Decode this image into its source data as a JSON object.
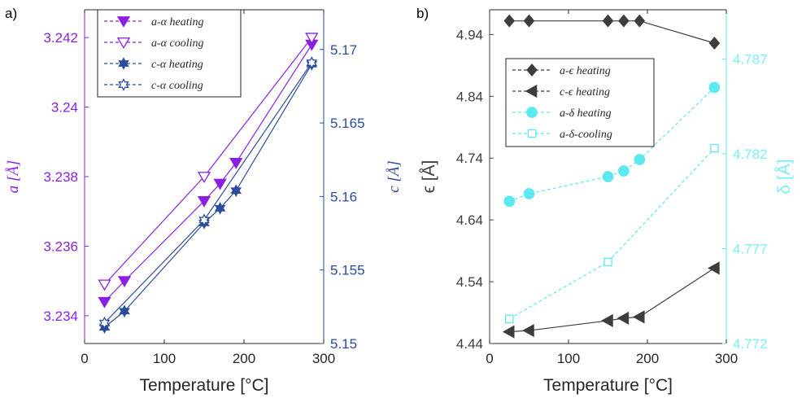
{
  "colors": {
    "purple": "#8B1FE0",
    "blue": "#2B4C9A",
    "gray": "#3d3d3d",
    "cyan": "#5CE8F0",
    "cyan_tick": "#7AF0F5"
  },
  "panel_a_label": "a)",
  "panel_b_label": "b)",
  "chart_data": [
    {
      "type": "line",
      "panel": "a)",
      "xlabel": "Temperature [°C]",
      "ylabel_left": "a [Å]",
      "ylabel_right": "c [Å]",
      "xlim": [
        0,
        300
      ],
      "ylim_left": [
        3.2332,
        3.2428
      ],
      "ylim_right": [
        5.15,
        5.1727
      ],
      "xticks": [
        0,
        100,
        200,
        300
      ],
      "yticks_left": [
        3.234,
        3.236,
        3.238,
        3.24,
        3.242
      ],
      "yticks_left_labels": [
        "3.234",
        "3.236",
        "3.238",
        "3.24",
        "3.242"
      ],
      "yticks_right": [
        5.15,
        5.155,
        5.16,
        5.165,
        5.17
      ],
      "yticks_right_labels": [
        "5.15",
        "5.155",
        "5.16",
        "5.165",
        "5.17"
      ],
      "legend_position": "top",
      "series": [
        {
          "name": "a-α heating",
          "axis": "left",
          "color": "purple",
          "marker": "triangle-down-filled",
          "legend_line": "dashed",
          "x": [
            25,
            50,
            150,
            170,
            190,
            285
          ],
          "y": [
            3.2344,
            3.235,
            3.2373,
            3.2378,
            3.2384,
            3.2418
          ]
        },
        {
          "name": "a-α cooling",
          "axis": "left",
          "color": "purple",
          "marker": "triangle-down-open",
          "legend_line": "dashed",
          "x": [
            25,
            150,
            285
          ],
          "y": [
            3.2349,
            3.238,
            3.242
          ]
        },
        {
          "name": "c-α heating",
          "axis": "right",
          "color": "blue",
          "marker": "star-filled",
          "legend_line": "dashed",
          "x": [
            25,
            50,
            150,
            170,
            190,
            285
          ],
          "y": [
            5.1511,
            5.1522,
            5.1582,
            5.1592,
            5.1604,
            5.169
          ]
        },
        {
          "name": "c-α cooling",
          "axis": "right",
          "color": "blue",
          "marker": "star-open",
          "legend_line": "dashed",
          "x": [
            25,
            150,
            285
          ],
          "y": [
            5.1514,
            5.1584,
            5.1691
          ]
        }
      ]
    },
    {
      "type": "line",
      "panel": "b)",
      "xlabel": "Temperature [°C]",
      "ylabel_left": "ϵ [Å]",
      "ylabel_right": "δ [Å]",
      "xlim": [
        0,
        300
      ],
      "ylim_left": [
        4.44,
        4.98
      ],
      "ylim_right": [
        4.772,
        4.7896
      ],
      "xticks": [
        0,
        100,
        200,
        300
      ],
      "yticks_left": [
        4.44,
        4.54,
        4.64,
        4.74,
        4.84,
        4.94
      ],
      "yticks_left_labels": [
        "4.44",
        "4.54",
        "4.64",
        "4.74",
        "4.84",
        "4.94"
      ],
      "yticks_right": [
        4.772,
        4.777,
        4.782,
        4.787
      ],
      "yticks_right_labels": [
        "4.772",
        "4.777",
        "4.782",
        "4.787"
      ],
      "legend_position": "upper-left",
      "series": [
        {
          "name": "a-ϵ heating",
          "axis": "left",
          "color": "gray",
          "marker": "diamond-filled",
          "legend_line": "dashed",
          "line": "solid",
          "x": [
            25,
            50,
            150,
            170,
            190,
            285
          ],
          "y": [
            4.962,
            4.962,
            4.962,
            4.962,
            4.962,
            4.926
          ]
        },
        {
          "name": "c-ϵ heating",
          "axis": "left",
          "color": "gray",
          "marker": "triangle-left-filled",
          "legend_line": "dashed",
          "line": "solid",
          "x": [
            25,
            50,
            150,
            170,
            190,
            285
          ],
          "y": [
            4.459,
            4.461,
            4.477,
            4.481,
            4.483,
            4.562
          ]
        },
        {
          "name": "a-δ heating",
          "axis": "right",
          "color": "cyan",
          "marker": "circle-filled",
          "legend_line": "dashed",
          "line": "dashed",
          "x": [
            25,
            50,
            150,
            170,
            190,
            285
          ],
          "y": [
            4.7795,
            4.7799,
            4.7808,
            4.7811,
            4.7817,
            4.7855
          ]
        },
        {
          "name": "a-δ-cooling",
          "axis": "right",
          "color": "cyan",
          "marker": "square-open",
          "legend_line": "dashed",
          "line": "dashed",
          "x": [
            25,
            150,
            285
          ],
          "y": [
            4.7733,
            4.7763,
            4.7823
          ]
        }
      ]
    }
  ]
}
